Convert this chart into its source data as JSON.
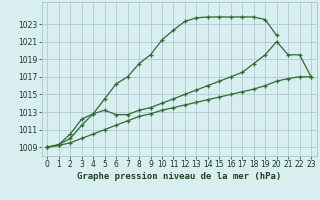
{
  "line1_x": [
    0,
    1,
    2,
    3,
    4,
    5,
    6,
    7,
    8,
    9,
    10,
    11,
    12,
    13,
    14,
    15,
    16,
    17,
    18,
    19,
    20
  ],
  "line1_y": [
    1009.0,
    1009.3,
    1010.0,
    1011.5,
    1012.8,
    1014.5,
    1016.2,
    1017.0,
    1018.5,
    1019.5,
    1021.2,
    1022.3,
    1023.3,
    1023.7,
    1023.8,
    1023.8,
    1023.8,
    1023.8,
    1023.8,
    1023.5,
    1021.7
  ],
  "line2_x": [
    0,
    1,
    2,
    3,
    4,
    5,
    6,
    7,
    8,
    9,
    10,
    11,
    12,
    13,
    14,
    15,
    16,
    17,
    18,
    19,
    20,
    21,
    22,
    23
  ],
  "line2_y": [
    1009.0,
    1009.3,
    1010.5,
    1012.2,
    1012.8,
    1013.2,
    1012.7,
    1012.7,
    1013.2,
    1013.5,
    1014.0,
    1014.5,
    1015.0,
    1015.5,
    1016.0,
    1016.5,
    1017.0,
    1017.5,
    1018.5,
    1019.5,
    1021.0,
    1019.5,
    1019.5,
    1017.0
  ],
  "line3_x": [
    0,
    1,
    2,
    3,
    4,
    5,
    6,
    7,
    8,
    9,
    10,
    11,
    12,
    13,
    14,
    15,
    16,
    17,
    18,
    19,
    20,
    21,
    22,
    23
  ],
  "line3_y": [
    1009.0,
    1009.2,
    1009.5,
    1010.0,
    1010.5,
    1011.0,
    1011.5,
    1012.0,
    1012.5,
    1012.8,
    1013.2,
    1013.5,
    1013.8,
    1014.1,
    1014.4,
    1014.7,
    1015.0,
    1015.3,
    1015.6,
    1016.0,
    1016.5,
    1016.8,
    1017.0,
    1017.0
  ],
  "line_color": "#2d6e2d",
  "bg_color": "#d8eef0",
  "grid_color": "#aaccd0",
  "xlabel": "Graphe pression niveau de la mer (hPa)",
  "xlabel_color": "#1a4a1a",
  "ylim": [
    1008.0,
    1025.5
  ],
  "xlim": [
    -0.5,
    23.5
  ],
  "yticks": [
    1009,
    1011,
    1013,
    1015,
    1017,
    1019,
    1021,
    1023
  ],
  "xticks": [
    0,
    1,
    2,
    3,
    4,
    5,
    6,
    7,
    8,
    9,
    10,
    11,
    12,
    13,
    14,
    15,
    16,
    17,
    18,
    19,
    20,
    21,
    22,
    23
  ],
  "tick_fontsize": 5.5,
  "xlabel_fontsize": 6.5
}
